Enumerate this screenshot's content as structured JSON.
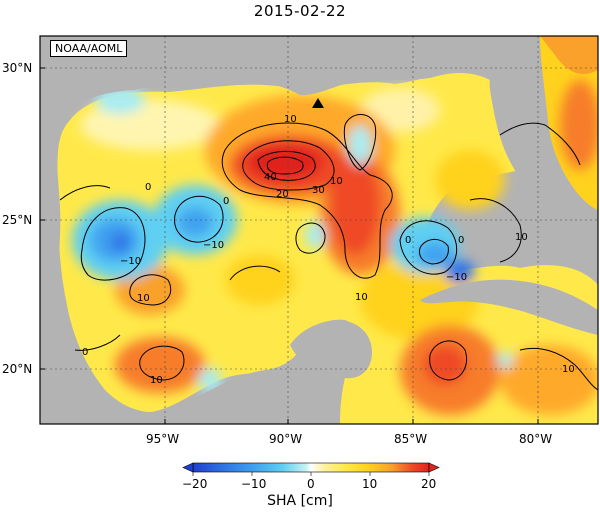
{
  "title": "2015-02-22",
  "agency_label": "NOAA/AOML",
  "lat_ticks": [
    "30°N",
    "25°N",
    "20°N"
  ],
  "lon_ticks": [
    "95°W",
    "90°W",
    "85°W",
    "80°W"
  ],
  "colorbar": {
    "label": "SHA [cm]",
    "ticks": [
      "−20",
      "−10",
      "0",
      "10",
      "20"
    ],
    "colors": [
      "#1f3fd0",
      "#2f74e6",
      "#3fa2f0",
      "#5fcff2",
      "#a8ecf2",
      "#ffffff",
      "#fff2a8",
      "#ffe94a",
      "#ffd21e",
      "#ffa92b",
      "#f77d2a",
      "#ef4a26",
      "#e0231f"
    ]
  },
  "contour_labels": [
    "10",
    "40",
    "30",
    "20",
    "10",
    "0",
    "0",
    "−10",
    "−10",
    "−10",
    "10",
    "10",
    "0",
    "0",
    "10",
    "10",
    "10",
    "0"
  ],
  "marker": "triangle"
}
